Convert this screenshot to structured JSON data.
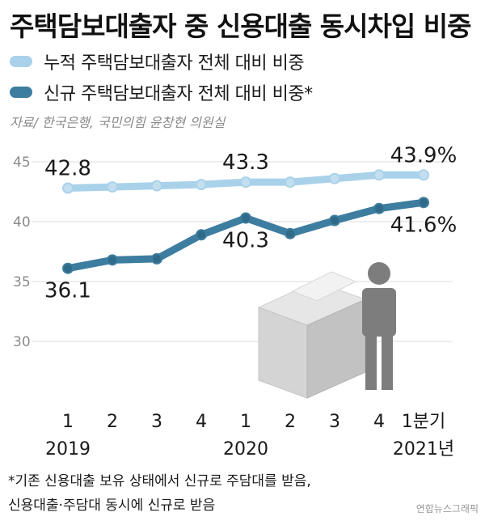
{
  "title": "주택담보대출자 중 신용대출 동시차입 비중",
  "source": "자료/ 한국은행, 국민의힘 윤창현 의원실",
  "footnote_lines": [
    "*기존 신용대출 보유 상태에서 신규로 주담대를 받음,",
    "  신용대출·주담대 동시에 신규로 받음"
  ],
  "credit": "연합뉴스그래픽",
  "colors": {
    "cumulative": "#a9d2ea",
    "new": "#3d7d9f",
    "grid": "#e2e2e2",
    "tick": "#8a8a8a"
  },
  "chart_data": {
    "type": "line",
    "title": "주택담보대출자 중 신용대출 동시차입 비중",
    "categories": [
      "1",
      "2",
      "3",
      "4",
      "1",
      "2",
      "3",
      "4",
      "1분기"
    ],
    "year_labels": [
      {
        "label": "2019",
        "index": 0
      },
      {
        "label": "2020",
        "index": 4
      },
      {
        "label": "2021년",
        "index": 8
      }
    ],
    "ylim": [
      28,
      46
    ],
    "yticks": [
      30,
      35,
      40,
      45
    ],
    "grid": true,
    "legend_position": "top-left",
    "series": [
      {
        "name": "누적 주택담보대출자 전체 대비 비중",
        "color": "#a9d2ea",
        "values": [
          42.8,
          42.9,
          43.0,
          43.1,
          43.3,
          43.3,
          43.6,
          43.9,
          43.9
        ],
        "labels": [
          {
            "index": 0,
            "text": "42.8",
            "pos": "above"
          },
          {
            "index": 4,
            "text": "43.3",
            "pos": "above"
          },
          {
            "index": 8,
            "text": "43.9%",
            "pos": "above"
          }
        ]
      },
      {
        "name": "신규 주택담보대출자 전체 대비 비중*",
        "color": "#3d7d9f",
        "values": [
          36.1,
          36.8,
          36.9,
          38.9,
          40.3,
          39.0,
          40.1,
          41.1,
          41.6
        ],
        "labels": [
          {
            "index": 0,
            "text": "36.1",
            "pos": "below"
          },
          {
            "index": 4,
            "text": "40.3",
            "pos": "below"
          },
          {
            "index": 8,
            "text": "41.6%",
            "pos": "below"
          }
        ]
      }
    ]
  }
}
